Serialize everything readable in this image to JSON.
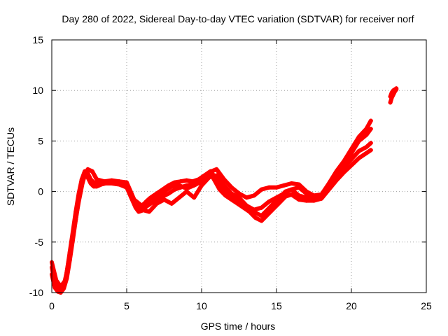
{
  "chart_data": {
    "type": "scatter",
    "title": "Day 280 of 2022, Sidereal Day-to-day VTEC variation (SDTVAR) for receiver norf",
    "xlabel": "GPS time / hours",
    "ylabel": "SDTVAR / TECUs",
    "xlim": [
      0,
      25
    ],
    "ylim": [
      -10,
      15
    ],
    "xticks": [
      "0",
      "5",
      "10",
      "15",
      "20",
      "25"
    ],
    "yticks": [
      "-10",
      "-5",
      "0",
      "5",
      "10",
      "15"
    ],
    "grid": true,
    "marker": "+",
    "series_color": "#ff0000",
    "series": [
      {
        "x": [
          0.0,
          0.2,
          0.4,
          0.6,
          0.8,
          1.0,
          1.2,
          1.4,
          1.6,
          1.8,
          2.0,
          2.2,
          2.4,
          2.6,
          2.8,
          3.0,
          3.3,
          3.6,
          4.0,
          4.5,
          5.0,
          5.3,
          5.6,
          5.8,
          6.0,
          6.3,
          6.6,
          7.0,
          7.4,
          7.8,
          8.2,
          8.6,
          9.0,
          9.4,
          9.8,
          10.2,
          10.6,
          10.9,
          11.2,
          11.6,
          12.0,
          12.4,
          12.8,
          13.2,
          13.6,
          14.0,
          14.4,
          14.8,
          15.2,
          15.6,
          16.0,
          16.5,
          17.0,
          17.5,
          18.0,
          18.5,
          19.0,
          19.5,
          20.0,
          20.5,
          21.0,
          21.3
        ],
        "y": [
          -7.5,
          -9.0,
          -9.6,
          -9.8,
          -9.3,
          -8.0,
          -6.0,
          -4.0,
          -2.0,
          -0.2,
          1.2,
          2.0,
          1.8,
          1.2,
          0.9,
          0.8,
          0.9,
          1.0,
          1.0,
          0.9,
          0.7,
          -0.3,
          -1.2,
          -1.6,
          -1.5,
          -1.0,
          -0.6,
          -0.2,
          0.2,
          0.6,
          0.9,
          1.0,
          1.1,
          1.0,
          1.2,
          1.6,
          2.0,
          1.4,
          0.6,
          0.0,
          -0.4,
          -0.8,
          -1.2,
          -1.6,
          -2.1,
          -2.4,
          -1.8,
          -1.2,
          -0.6,
          0.0,
          0.2,
          -0.4,
          -0.6,
          -0.7,
          -0.5,
          0.5,
          1.5,
          2.4,
          3.2,
          4.0,
          4.4,
          4.8
        ]
      },
      {
        "x": [
          0.0,
          0.2,
          0.4,
          0.6,
          0.8,
          1.0,
          1.2,
          1.4,
          1.6,
          1.8,
          2.0,
          2.2,
          2.4,
          2.6,
          2.8,
          3.0,
          3.3,
          3.6,
          4.0,
          4.5,
          5.0,
          5.3,
          5.6,
          5.8,
          6.0,
          6.3,
          6.6,
          7.0,
          7.4,
          7.8,
          8.2,
          8.6,
          9.0,
          9.4,
          9.8,
          10.2,
          10.6,
          10.9,
          11.2,
          11.6,
          12.0,
          12.4,
          12.8,
          13.2,
          13.6,
          14.0,
          14.4,
          14.8,
          15.2,
          15.6,
          16.0,
          16.5,
          17.0,
          17.5,
          18.0,
          18.5,
          19.0,
          19.5,
          20.0,
          20.5,
          21.0,
          21.3
        ],
        "y": [
          -8.2,
          -9.5,
          -9.9,
          -10.0,
          -9.6,
          -8.6,
          -6.8,
          -4.8,
          -2.8,
          -0.8,
          0.6,
          1.6,
          1.4,
          0.8,
          0.5,
          0.5,
          0.7,
          0.8,
          0.8,
          0.7,
          0.4,
          -0.6,
          -1.6,
          -2.0,
          -1.9,
          -1.5,
          -1.2,
          -0.8,
          -0.5,
          -0.2,
          0.2,
          0.4,
          0.6,
          0.7,
          0.9,
          1.3,
          1.8,
          1.0,
          0.2,
          -0.4,
          -0.8,
          -1.2,
          -1.6,
          -2.0,
          -2.6,
          -2.9,
          -2.3,
          -1.7,
          -1.1,
          -0.5,
          -0.3,
          -0.8,
          -0.9,
          -0.9,
          -0.7,
          0.2,
          1.1,
          1.9,
          2.6,
          3.3,
          3.8,
          4.1
        ]
      },
      {
        "x": [
          0.0,
          0.3,
          0.6,
          0.9,
          1.2,
          1.5,
          1.8,
          2.1,
          2.4,
          2.7,
          3.0,
          3.5,
          4.0,
          4.5,
          5.0,
          5.5,
          6.0,
          6.5,
          7.0,
          7.5,
          8.0,
          8.5,
          9.0,
          9.5,
          10.0,
          10.5,
          11.0,
          11.5,
          12.0,
          12.5,
          13.0,
          13.5,
          14.0,
          14.5,
          15.0,
          15.5,
          16.0,
          16.5,
          17.0,
          17.5,
          18.0,
          18.5,
          19.0,
          19.5,
          20.0,
          20.5,
          21.0,
          21.3
        ],
        "y": [
          -7.0,
          -8.8,
          -9.4,
          -8.8,
          -6.2,
          -3.6,
          -1.0,
          1.2,
          2.2,
          2.0,
          1.2,
          1.0,
          1.1,
          1.0,
          0.9,
          -0.8,
          -1.4,
          -0.8,
          -0.4,
          0.0,
          0.5,
          0.6,
          0.3,
          0.6,
          1.0,
          1.9,
          2.2,
          1.2,
          0.4,
          -0.2,
          -0.6,
          -0.4,
          0.2,
          0.4,
          0.4,
          0.6,
          0.8,
          0.7,
          0.0,
          -0.4,
          -0.3,
          0.8,
          2.0,
          3.0,
          4.2,
          5.4,
          6.2,
          7.0
        ]
      },
      {
        "x": [
          6.0,
          6.5,
          7.0,
          7.5,
          8.0,
          8.5,
          9.0,
          9.5,
          10.0,
          10.5,
          11.0,
          11.5,
          12.0,
          12.5,
          13.0,
          13.5,
          14.0,
          14.5,
          15.0,
          15.5,
          16.0,
          16.5,
          17.0,
          17.5,
          18.0,
          18.5,
          19.0,
          19.5,
          20.0,
          20.5,
          21.0,
          21.3
        ],
        "y": [
          -1.8,
          -2.0,
          -1.2,
          -0.8,
          -1.2,
          -0.6,
          0.0,
          -0.6,
          0.6,
          1.4,
          1.6,
          0.6,
          -0.2,
          -0.6,
          -1.4,
          -1.8,
          -1.6,
          -1.0,
          -0.6,
          -0.2,
          0.2,
          0.4,
          -0.2,
          -0.5,
          -0.4,
          0.5,
          1.6,
          2.6,
          3.8,
          5.0,
          5.6,
          6.2
        ]
      },
      {
        "x": [
          22.6,
          22.7,
          22.8,
          22.9,
          23.0
        ],
        "y": [
          8.8,
          9.3,
          9.6,
          9.9,
          10.1
        ]
      },
      {
        "x": [
          22.6,
          22.7,
          22.8,
          22.9,
          23.0
        ],
        "y": [
          9.4,
          9.8,
          10.0,
          10.1,
          10.2
        ]
      }
    ]
  }
}
